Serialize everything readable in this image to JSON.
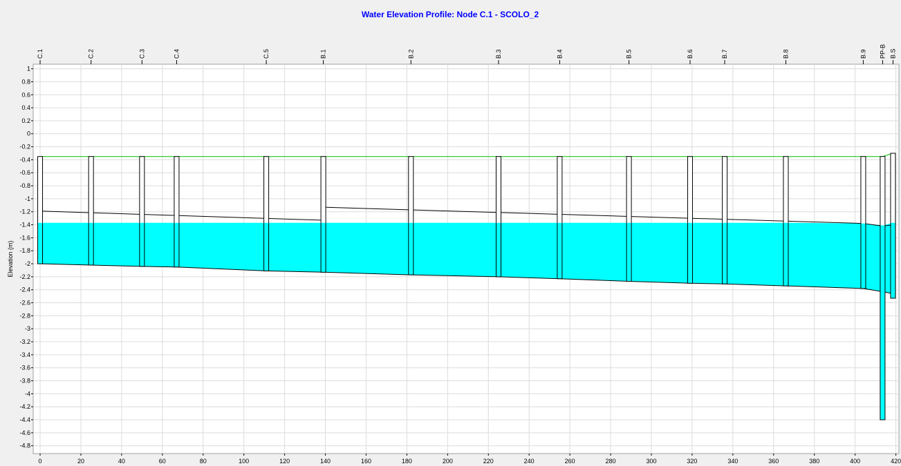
{
  "chart_data": {
    "type": "profile",
    "title": "Water Elevation Profile: Node C.1 - SCOLO_2",
    "y_label": "Elevation (m)",
    "xlim": [
      -3.4,
      421.5
    ],
    "xticks": [
      0,
      20,
      40,
      60,
      80,
      100,
      120,
      140,
      160,
      180,
      200,
      220,
      240,
      260,
      280,
      300,
      320,
      340,
      360,
      380,
      400,
      420
    ],
    "ylim": [
      -4.92,
      1.07
    ],
    "yticks": [
      1,
      0.8,
      0.6,
      0.4,
      0.2,
      0,
      -0.2,
      -0.4,
      -0.6,
      -0.8,
      -1,
      -1.2,
      -1.4,
      -1.6,
      -1.8,
      -2,
      -2.2,
      -2.4,
      -2.6,
      -2.8,
      -3,
      -3.2,
      -3.4,
      -3.6,
      -3.8,
      -4,
      -4.2,
      -4.4,
      -4.6,
      -4.8
    ],
    "grid": true,
    "nodes": {
      "names": [
        "C.1",
        "C.2",
        "C.3",
        "C.4",
        "C.5",
        "B.1",
        "B.2",
        "B.3",
        "B.4",
        "B.5",
        "B.6",
        "B.7",
        "B.8",
        "B.9",
        "PP-B",
        "B.S"
      ],
      "x": [
        0,
        25,
        50,
        67,
        111,
        139,
        182,
        225,
        255,
        289,
        319,
        336,
        366,
        404,
        413.5,
        418.6
      ],
      "rim": [
        -0.35,
        -0.35,
        -0.35,
        -0.35,
        -0.35,
        -0.35,
        -0.35,
        -0.35,
        -0.35,
        -0.35,
        -0.35,
        -0.35,
        -0.35,
        -0.35,
        -0.35,
        -0.3
      ],
      "invert": [
        -2.0,
        -2.02,
        -2.04,
        -2.05,
        -2.11,
        -2.13,
        -2.17,
        -2.2,
        -2.23,
        -2.27,
        -2.3,
        -2.31,
        -2.34,
        -2.38,
        -4.4,
        -2.53
      ],
      "rim_color": "#00c000"
    },
    "water_surface": {
      "color": "#00ffff",
      "values": [
        -1.37,
        -1.37,
        -1.37,
        -1.37,
        -1.37,
        -1.37,
        -1.37,
        -1.37,
        -1.37,
        -1.37,
        -1.37,
        -1.37,
        -1.37,
        -1.38,
        -1.41,
        -1.37
      ]
    },
    "conduit_invert": {
      "values": [
        -2.0,
        -2.02,
        -2.04,
        -2.05,
        -2.11,
        -2.13,
        -2.17,
        -2.2,
        -2.23,
        -2.27,
        -2.3,
        -2.31,
        -2.34,
        -2.38,
        -2.43,
        -2.46
      ]
    },
    "conduit_crown": {
      "color": "#000000",
      "x": [
        0,
        139,
        null,
        139,
        404,
        413.5,
        418.6
      ],
      "values": [
        -1.19,
        -1.33,
        null,
        -1.13,
        -1.38,
        -1.42,
        -1.4
      ]
    }
  }
}
